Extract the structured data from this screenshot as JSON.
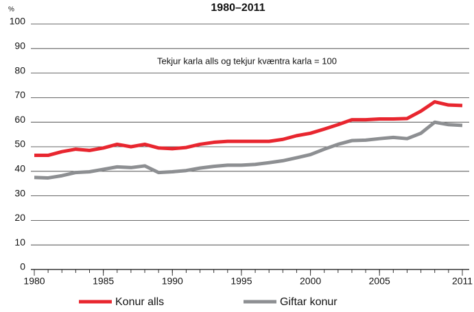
{
  "chart_data": {
    "type": "line",
    "subtitle": "1980–2011",
    "y_unit": "%",
    "annotation": "Tekjur karla  alls og tekjur kvæntra karla = 100",
    "x": [
      1980,
      1981,
      1982,
      1983,
      1984,
      1985,
      1986,
      1987,
      1988,
      1989,
      1990,
      1991,
      1992,
      1993,
      1994,
      1995,
      1996,
      1997,
      1998,
      1999,
      2000,
      2001,
      2002,
      2003,
      2004,
      2005,
      2006,
      2007,
      2008,
      2009,
      2010,
      2011
    ],
    "series": [
      {
        "name": "Konur alls",
        "color": "#e8262f",
        "values": [
          46.5,
          46.5,
          48,
          49,
          48.5,
          49.5,
          51,
          50,
          51,
          49.5,
          49.2,
          49.7,
          51,
          51.8,
          52.2,
          52.2,
          52.2,
          52.2,
          53,
          54.5,
          55.5,
          57.2,
          59,
          61,
          61,
          61.3,
          61.3,
          61.5,
          64.5,
          68.3,
          67,
          66.8
        ]
      },
      {
        "name": "Giftar konur",
        "color": "#8d8f92",
        "values": [
          37.5,
          37.3,
          38.2,
          39.5,
          39.8,
          40.8,
          41.8,
          41.5,
          42.2,
          39.5,
          39.8,
          40.3,
          41.3,
          42,
          42.5,
          42.5,
          42.8,
          43.5,
          44.3,
          45.5,
          46.8,
          49,
          51,
          52.5,
          52.7,
          53.3,
          53.8,
          53.3,
          55.5,
          60,
          59,
          58.7
        ]
      }
    ],
    "xlim": [
      1980,
      2011
    ],
    "xticks": [
      1980,
      1985,
      1990,
      1995,
      2000,
      2005,
      2011
    ],
    "ylim": [
      0,
      100
    ],
    "yticks": [
      0,
      10,
      20,
      30,
      40,
      50,
      60,
      70,
      80,
      90,
      100
    ],
    "grid": true
  }
}
